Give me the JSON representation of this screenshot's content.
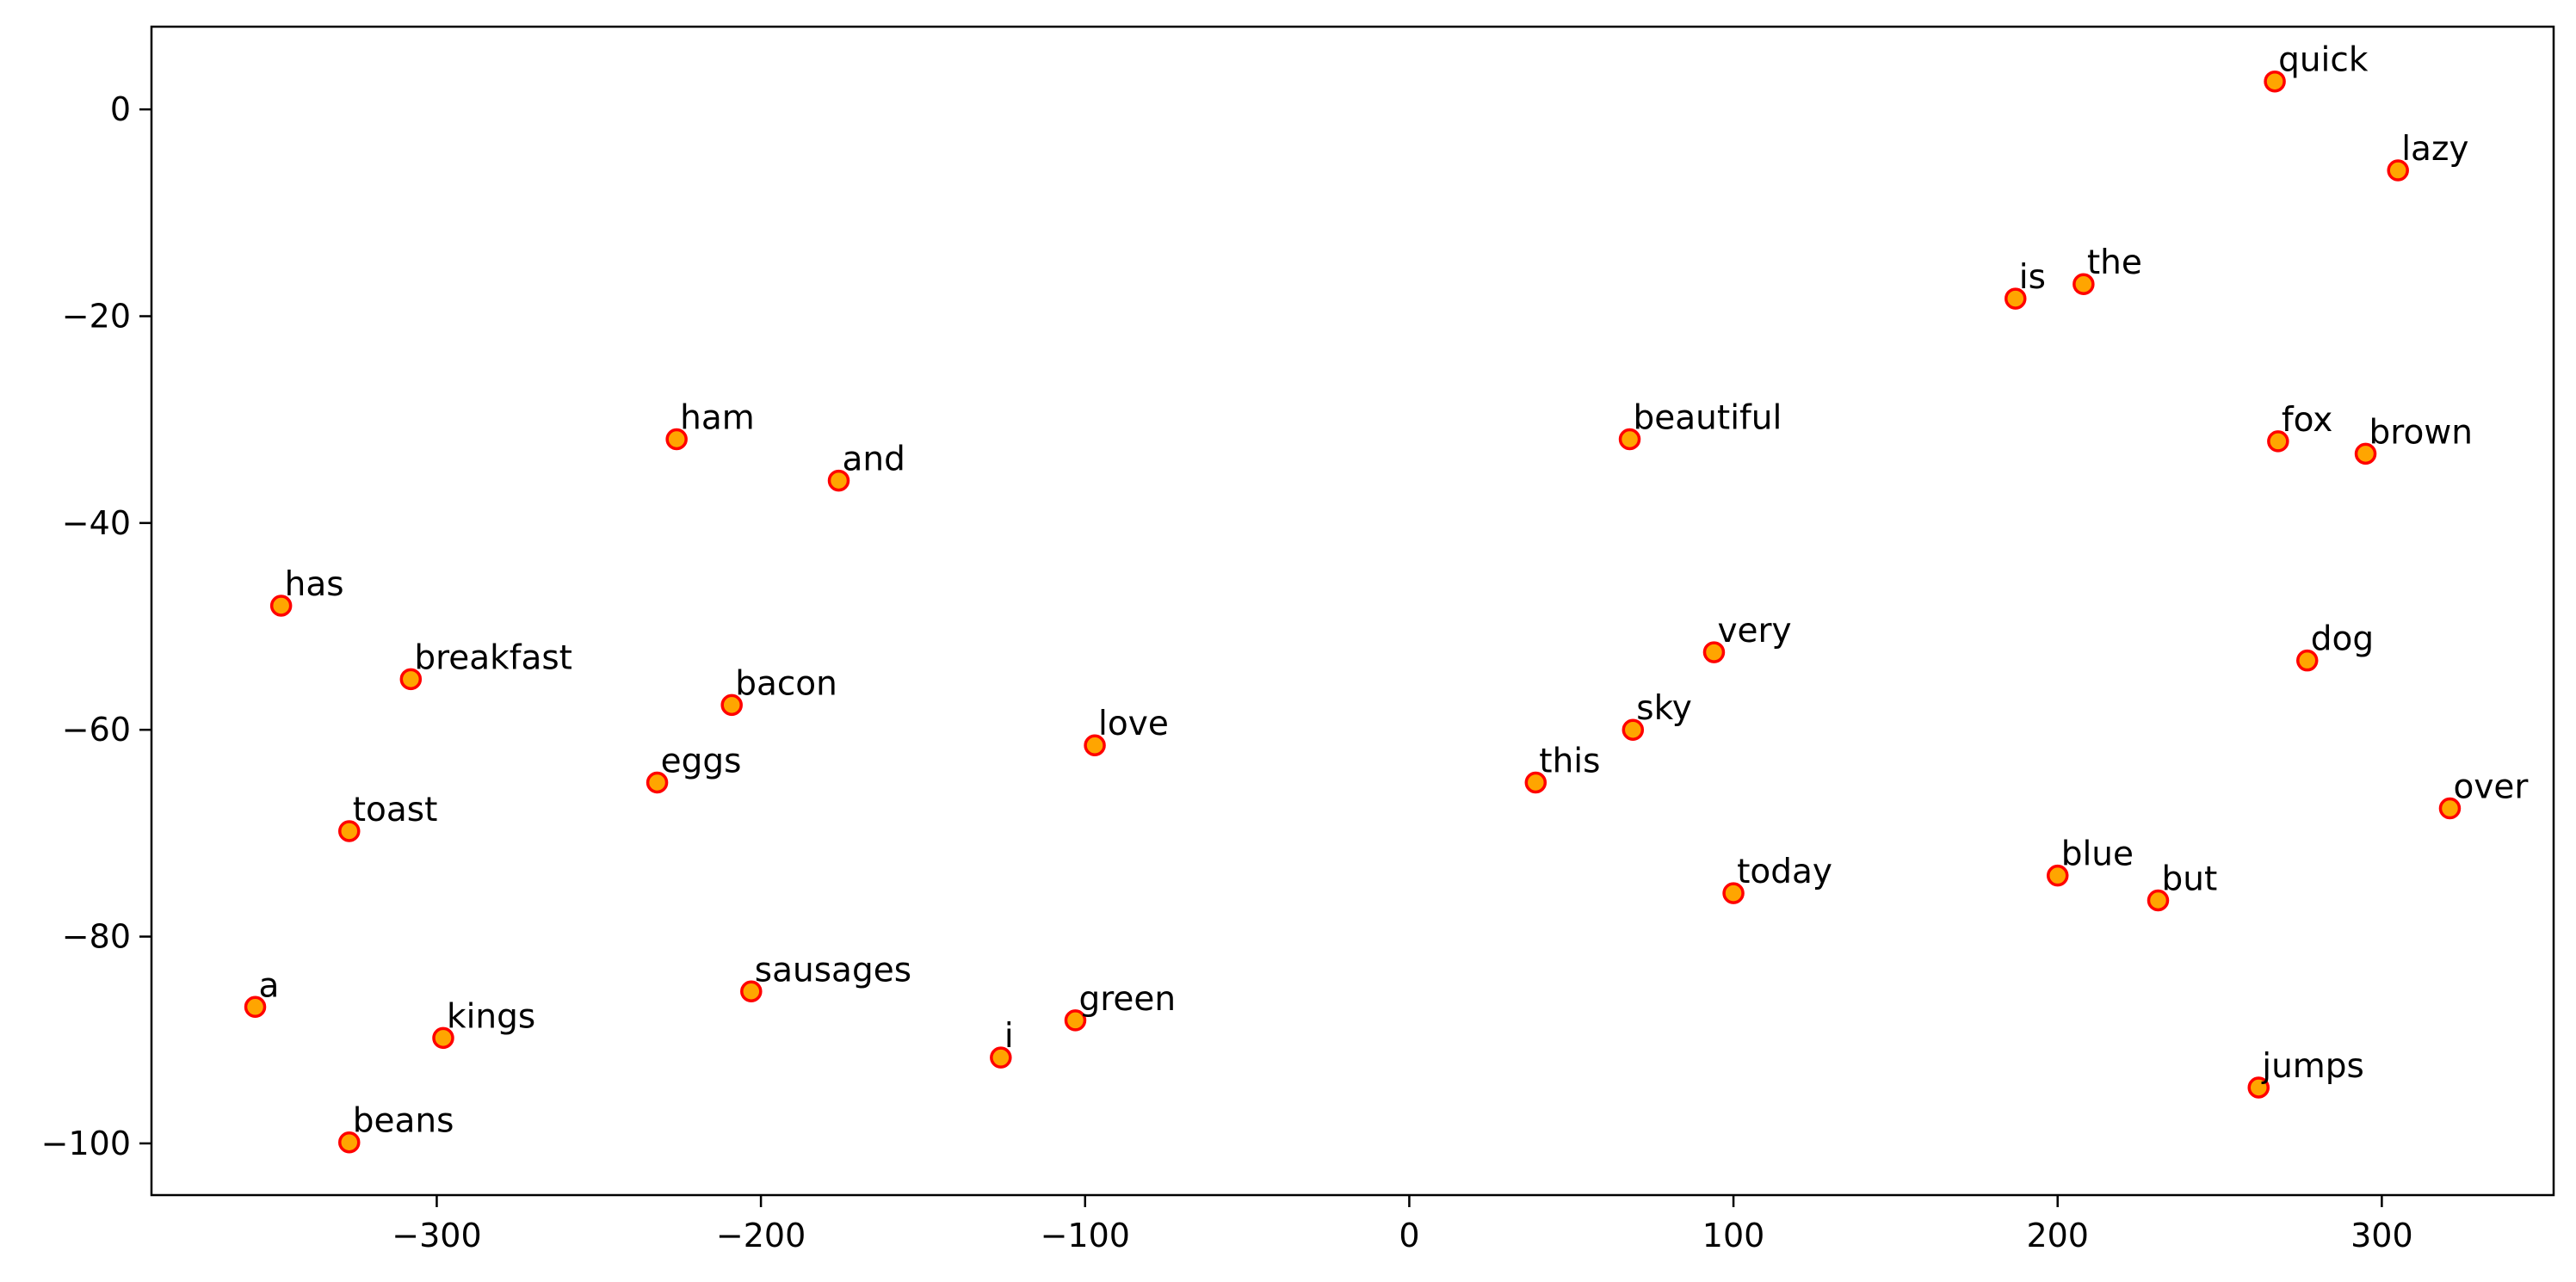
{
  "chart_data": {
    "type": "scatter",
    "title": "",
    "xlabel": "",
    "ylabel": "",
    "xlim": [
      -388,
      353
    ],
    "ylim": [
      -105,
      8
    ],
    "xticks": [
      -300,
      -200,
      -100,
      0,
      100,
      200,
      300
    ],
    "yticks": [
      0,
      -20,
      -40,
      -60,
      -80,
      -100
    ],
    "grid": false,
    "marker_fill": "#ffa500",
    "marker_edge": "#ff0000",
    "points": [
      {
        "label": "quick",
        "x": 267,
        "y": 2.7
      },
      {
        "label": "lazy",
        "x": 305,
        "y": -5.9
      },
      {
        "label": "is",
        "x": 187,
        "y": -18.3
      },
      {
        "label": "the",
        "x": 208,
        "y": -16.9
      },
      {
        "label": "ham",
        "x": -226,
        "y": -31.9
      },
      {
        "label": "and",
        "x": -176,
        "y": -35.9
      },
      {
        "label": "beautiful",
        "x": 68,
        "y": -31.9
      },
      {
        "label": "fox",
        "x": 268,
        "y": -32.1
      },
      {
        "label": "brown",
        "x": 295,
        "y": -33.3
      },
      {
        "label": "has",
        "x": -348,
        "y": -48.0
      },
      {
        "label": "breakfast",
        "x": -308,
        "y": -55.1
      },
      {
        "label": "bacon",
        "x": -209,
        "y": -57.6
      },
      {
        "label": "very",
        "x": 94,
        "y": -52.5
      },
      {
        "label": "dog",
        "x": 277,
        "y": -53.3
      },
      {
        "label": "love",
        "x": -97,
        "y": -61.5
      },
      {
        "label": "sky",
        "x": 69,
        "y": -60.0
      },
      {
        "label": "this",
        "x": 39,
        "y": -65.1
      },
      {
        "label": "eggs",
        "x": -232,
        "y": -65.1
      },
      {
        "label": "toast",
        "x": -327,
        "y": -69.8
      },
      {
        "label": "over",
        "x": 321,
        "y": -67.6
      },
      {
        "label": "today",
        "x": 100,
        "y": -75.8
      },
      {
        "label": "blue",
        "x": 200,
        "y": -74.1
      },
      {
        "label": "but",
        "x": 231,
        "y": -76.5
      },
      {
        "label": "a",
        "x": -356,
        "y": -86.8
      },
      {
        "label": "kings",
        "x": -298,
        "y": -89.8
      },
      {
        "label": "sausages",
        "x": -203,
        "y": -85.3
      },
      {
        "label": "green",
        "x": -103,
        "y": -88.1
      },
      {
        "label": "i",
        "x": -126,
        "y": -91.7
      },
      {
        "label": "jumps",
        "x": 262,
        "y": -94.6
      },
      {
        "label": "beans",
        "x": -327,
        "y": -99.9
      }
    ]
  }
}
